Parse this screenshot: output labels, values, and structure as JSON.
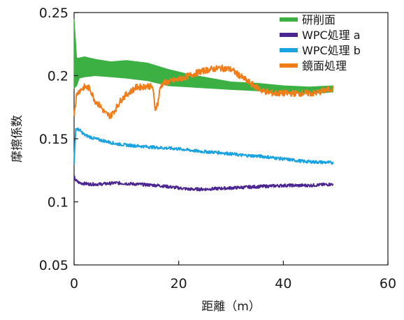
{
  "chart_data": {
    "type": "line",
    "xlabel": "距離（m）",
    "ylabel": "摩擦係数",
    "xlim": [
      0,
      60
    ],
    "ylim": [
      0.05,
      0.25
    ],
    "x_ticks": [
      0,
      20,
      40,
      60
    ],
    "x_tick_labels": [
      "0",
      "20",
      "40",
      "60"
    ],
    "y_ticks": [
      0.05,
      0.1,
      0.15,
      0.2,
      0.25
    ],
    "y_tick_labels": [
      "0.05",
      "0.1",
      "0.15",
      "0.2",
      "0.25"
    ],
    "grid": false,
    "legend": "top-right",
    "series": [
      {
        "name": "研削面",
        "color": "#3cb043",
        "band": true,
        "x": [
          0,
          0.5,
          1,
          2,
          4,
          7,
          10,
          14,
          18,
          22,
          26,
          30,
          35,
          40,
          45,
          49.5
        ],
        "low": [
          0.19,
          0.192,
          0.198,
          0.199,
          0.2,
          0.199,
          0.198,
          0.196,
          0.192,
          0.191,
          0.19,
          0.189,
          0.188,
          0.186,
          0.186,
          0.187
        ],
        "high": [
          0.245,
          0.214,
          0.214,
          0.215,
          0.213,
          0.211,
          0.212,
          0.21,
          0.205,
          0.201,
          0.198,
          0.195,
          0.194,
          0.192,
          0.191,
          0.192
        ]
      },
      {
        "name": "WPC処理 a",
        "color": "#4b2691",
        "x": [
          0,
          0.3,
          1,
          3,
          5,
          8,
          12,
          16,
          20,
          22,
          25,
          30,
          35,
          40,
          45,
          49.5
        ],
        "y": [
          0.12,
          0.117,
          0.115,
          0.114,
          0.114,
          0.115,
          0.114,
          0.113,
          0.111,
          0.11,
          0.11,
          0.111,
          0.112,
          0.113,
          0.113,
          0.114
        ]
      },
      {
        "name": "WPC処理 b",
        "color": "#1aa3e0",
        "x": [
          0,
          0.3,
          1,
          2,
          4,
          6,
          8,
          10,
          13,
          16,
          20,
          24,
          28,
          32,
          36,
          40,
          44,
          49.5
        ],
        "y": [
          0.13,
          0.158,
          0.157,
          0.153,
          0.15,
          0.148,
          0.146,
          0.145,
          0.144,
          0.143,
          0.142,
          0.14,
          0.139,
          0.137,
          0.136,
          0.134,
          0.132,
          0.131
        ]
      },
      {
        "name": "鏡面処理",
        "color": "#f07d1a",
        "x": [
          0,
          0.5,
          1,
          2,
          3,
          4,
          5,
          6,
          7,
          8,
          9,
          10,
          11,
          12,
          13,
          14,
          15,
          15.5,
          16,
          16.5,
          17,
          18,
          20,
          22,
          24,
          26,
          28,
          30,
          32,
          34,
          36,
          38,
          40,
          43,
          46,
          49.5
        ],
        "y": [
          0.17,
          0.185,
          0.188,
          0.191,
          0.19,
          0.18,
          0.176,
          0.17,
          0.168,
          0.174,
          0.181,
          0.185,
          0.188,
          0.191,
          0.191,
          0.192,
          0.191,
          0.174,
          0.178,
          0.191,
          0.194,
          0.195,
          0.197,
          0.2,
          0.203,
          0.205,
          0.206,
          0.205,
          0.199,
          0.193,
          0.188,
          0.186,
          0.186,
          0.186,
          0.186,
          0.19
        ]
      }
    ]
  }
}
